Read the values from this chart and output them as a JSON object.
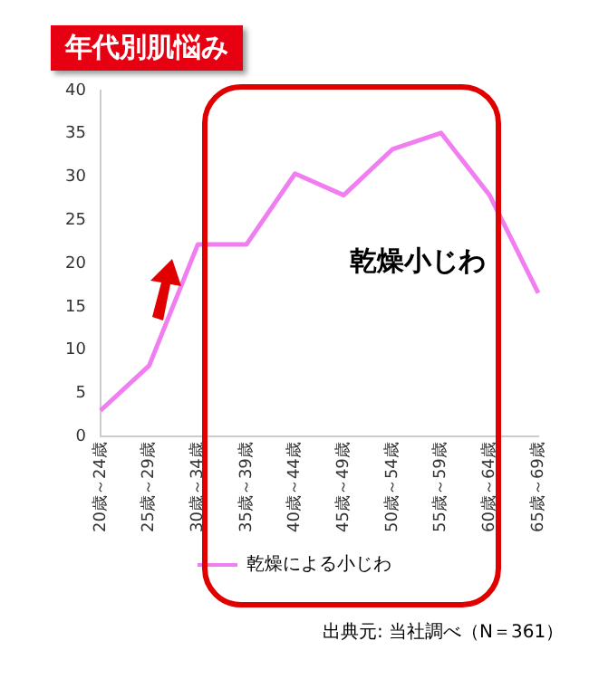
{
  "chart_data": {
    "type": "line",
    "title": "年代別肌悩み",
    "categories": [
      "20歳～24歳",
      "25歳～29歳",
      "30歳～34歳",
      "35歳～39歳",
      "40歳～44歳",
      "45歳～49歳",
      "50歳～54歳",
      "55歳～59歳",
      "60歳～64歳",
      "65歳～69歳"
    ],
    "series": [
      {
        "name": "乾燥による小じわ",
        "color": "#f07ef0",
        "values": [
          3,
          8.2,
          22.2,
          22.2,
          30.4,
          27.9,
          33.2,
          35.1,
          27.9,
          16.6
        ]
      }
    ],
    "ylim": [
      0,
      40
    ],
    "yticks": [
      0,
      5,
      10,
      15,
      20,
      25,
      30,
      35,
      40
    ],
    "grid": false,
    "legend": "bottom",
    "marker": "none",
    "line_style": "solid",
    "annotations": [
      "乾燥小じわ",
      "出典元: 当社調べ（N＝361）"
    ]
  }
}
